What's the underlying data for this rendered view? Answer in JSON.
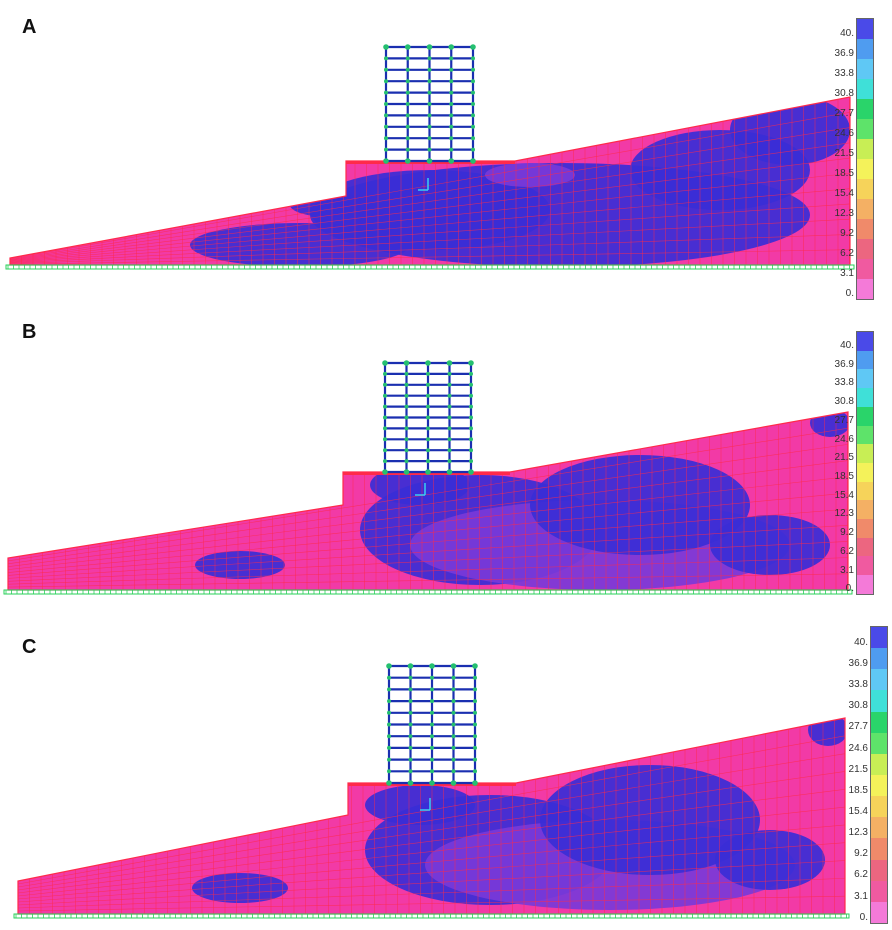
{
  "panels": [
    {
      "label": "A"
    },
    {
      "label": "B"
    },
    {
      "label": "C"
    }
  ],
  "legend": {
    "ticks": [
      "40.",
      "36.9",
      "33.8",
      "30.8",
      "27.7",
      "24.6",
      "21.5",
      "18.5",
      "15.4",
      "12.3",
      "9.2",
      "6.2",
      "3.1",
      "0."
    ],
    "colors": [
      "#4a4ae8",
      "#4f9cf0",
      "#5fc8f5",
      "#3fe0d8",
      "#2ad46a",
      "#5ee36a",
      "#c8ee55",
      "#f4f25a",
      "#f6d35a",
      "#f4b064",
      "#f08a6a",
      "#ec6680",
      "#f05aa0",
      "#f47ad8"
    ]
  },
  "colors": {
    "soil": "#f23aa6",
    "stressed": "#3a2ed6",
    "mid": "#7a3ad8",
    "mesh": "#ff2a4a",
    "frame": "#1a2fb0",
    "node": "#25c070",
    "base": "#2ad05a"
  }
}
